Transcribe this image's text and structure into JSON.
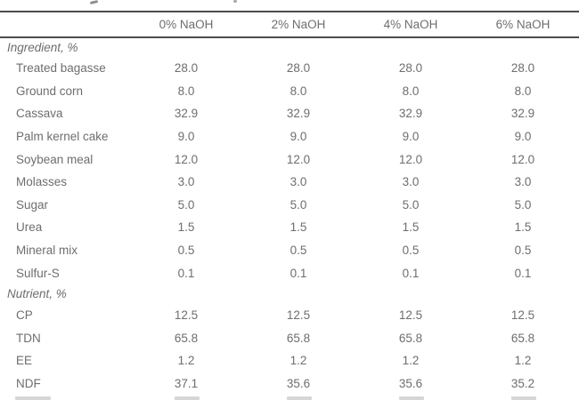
{
  "page": {
    "background_color": "#ffffff",
    "text_color": "#6e6e6e",
    "rule_color": "#4c4c4c"
  },
  "table": {
    "column_headers": [
      "0% NaOH",
      "2% NaOH",
      "4% NaOH",
      "6% NaOH"
    ],
    "rows": [
      {
        "type": "section",
        "label": "Ingredient, %"
      },
      {
        "type": "item",
        "label": "Treated bagasse",
        "values": [
          "28.0",
          "28.0",
          "28.0",
          "28.0"
        ]
      },
      {
        "type": "item",
        "label": "Ground corn",
        "values": [
          "8.0",
          "8.0",
          "8.0",
          "8.0"
        ]
      },
      {
        "type": "item",
        "label": "Cassava",
        "values": [
          "32.9",
          "32.9",
          "32.9",
          "32.9"
        ]
      },
      {
        "type": "item",
        "label": "Palm kernel cake",
        "values": [
          "9.0",
          "9.0",
          "9.0",
          "9.0"
        ]
      },
      {
        "type": "item",
        "label": "Soybean meal",
        "values": [
          "12.0",
          "12.0",
          "12.0",
          "12.0"
        ]
      },
      {
        "type": "item",
        "label": "Molasses",
        "values": [
          "3.0",
          "3.0",
          "3.0",
          "3.0"
        ]
      },
      {
        "type": "item",
        "label": "Sugar",
        "values": [
          "5.0",
          "5.0",
          "5.0",
          "5.0"
        ]
      },
      {
        "type": "item",
        "label": "Urea",
        "values": [
          "1.5",
          "1.5",
          "1.5",
          "1.5"
        ]
      },
      {
        "type": "item",
        "label": "Mineral mix",
        "values": [
          "0.5",
          "0.5",
          "0.5",
          "0.5"
        ]
      },
      {
        "type": "item",
        "label": "Sulfur-S",
        "values": [
          "0.1",
          "0.1",
          "0.1",
          "0.1"
        ]
      },
      {
        "type": "section",
        "label": "Nutrient, %"
      },
      {
        "type": "item",
        "label": "CP",
        "values": [
          "12.5",
          "12.5",
          "12.5",
          "12.5"
        ]
      },
      {
        "type": "item",
        "label": "TDN",
        "values": [
          "65.8",
          "65.8",
          "65.8",
          "65.8"
        ]
      },
      {
        "type": "item",
        "label": "EE",
        "values": [
          "1.2",
          "1.2",
          "1.2",
          "1.2"
        ]
      },
      {
        "type": "item",
        "label": "NDF",
        "values": [
          "37.1",
          "35.6",
          "35.6",
          "35.2"
        ]
      }
    ]
  }
}
